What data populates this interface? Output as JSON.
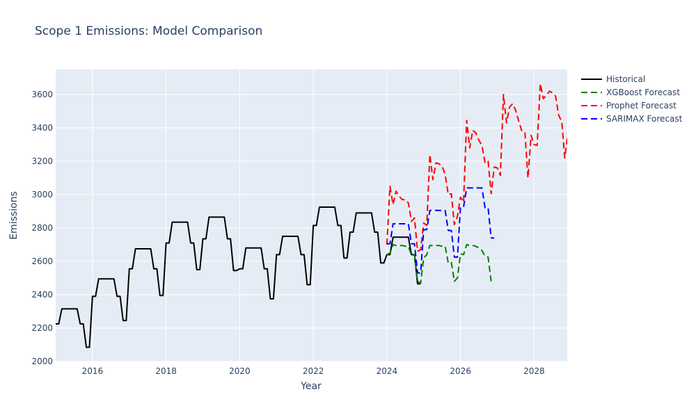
{
  "chart_data": {
    "type": "line",
    "title": "Scope 1 Emissions: Model Comparison",
    "xlabel": "Year",
    "ylabel": "Emissions",
    "xlim": [
      2015.0,
      2028.9
    ],
    "ylim": [
      2000,
      3750
    ],
    "x_ticks": [
      2016,
      2018,
      2020,
      2022,
      2024,
      2026,
      2028
    ],
    "x_tick_labels": [
      "2016",
      "2018",
      "2020",
      "2022",
      "2024",
      "2026",
      "2028"
    ],
    "y_ticks": [
      2000,
      2200,
      2400,
      2600,
      2800,
      3000,
      3200,
      3400,
      3600
    ],
    "y_tick_labels": [
      "2000",
      "2200",
      "2400",
      "2600",
      "2800",
      "3000",
      "3200",
      "3400",
      "3600"
    ],
    "grid": true,
    "legend_position": "top-right outside",
    "plot_background": "#e5ecf6",
    "series": [
      {
        "name": "Historical",
        "color": "#000000",
        "dash": "solid",
        "x": [
          2015.0,
          2015.083,
          2015.167,
          2015.25,
          2015.333,
          2015.417,
          2015.5,
          2015.583,
          2015.667,
          2015.75,
          2015.833,
          2015.917,
          2016.0,
          2016.083,
          2016.167,
          2016.25,
          2016.333,
          2016.417,
          2016.5,
          2016.583,
          2016.667,
          2016.75,
          2016.833,
          2016.917,
          2017.0,
          2017.083,
          2017.167,
          2017.25,
          2017.333,
          2017.417,
          2017.5,
          2017.583,
          2017.667,
          2017.75,
          2017.833,
          2017.917,
          2018.0,
          2018.083,
          2018.167,
          2018.25,
          2018.333,
          2018.417,
          2018.5,
          2018.583,
          2018.667,
          2018.75,
          2018.833,
          2018.917,
          2019.0,
          2019.083,
          2019.167,
          2019.25,
          2019.333,
          2019.417,
          2019.5,
          2019.583,
          2019.667,
          2019.75,
          2019.833,
          2019.917,
          2020.0,
          2020.083,
          2020.167,
          2020.25,
          2020.333,
          2020.417,
          2020.5,
          2020.583,
          2020.667,
          2020.75,
          2020.833,
          2020.917,
          2021.0,
          2021.083,
          2021.167,
          2021.25,
          2021.333,
          2021.417,
          2021.5,
          2021.583,
          2021.667,
          2021.75,
          2021.833,
          2021.917,
          2022.0,
          2022.083,
          2022.167,
          2022.25,
          2022.333,
          2022.417,
          2022.5,
          2022.583,
          2022.667,
          2022.75,
          2022.833,
          2022.917,
          2023.0,
          2023.083,
          2023.167,
          2023.25,
          2023.333,
          2023.417,
          2023.5,
          2023.583,
          2023.667,
          2023.75,
          2023.833,
          2023.917,
          2024.0,
          2024.083,
          2024.167,
          2024.25,
          2024.333,
          2024.417,
          2024.5,
          2024.583,
          2024.667,
          2024.75,
          2024.833,
          2024.917
        ],
        "y": [
          2225,
          2225,
          2315,
          2315,
          2315,
          2315,
          2315,
          2315,
          2225,
          2225,
          2085,
          2085,
          2390,
          2390,
          2495,
          2495,
          2495,
          2495,
          2495,
          2495,
          2390,
          2390,
          2245,
          2245,
          2555,
          2555,
          2675,
          2675,
          2675,
          2675,
          2675,
          2675,
          2555,
          2555,
          2395,
          2395,
          2710,
          2710,
          2835,
          2835,
          2835,
          2835,
          2835,
          2835,
          2710,
          2710,
          2550,
          2550,
          2735,
          2735,
          2865,
          2865,
          2865,
          2865,
          2865,
          2865,
          2735,
          2735,
          2545,
          2545,
          2555,
          2555,
          2680,
          2680,
          2680,
          2680,
          2680,
          2680,
          2555,
          2555,
          2375,
          2375,
          2640,
          2640,
          2750,
          2750,
          2750,
          2750,
          2750,
          2750,
          2640,
          2640,
          2460,
          2460,
          2815,
          2815,
          2925,
          2925,
          2925,
          2925,
          2925,
          2925,
          2815,
          2815,
          2620,
          2620,
          2775,
          2775,
          2890,
          2890,
          2890,
          2890,
          2890,
          2890,
          2775,
          2775,
          2590,
          2590,
          2640,
          2640,
          2745,
          2745,
          2745,
          2745,
          2745,
          2745,
          2640,
          2640,
          2465,
          2465
        ]
      },
      {
        "name": "XGBoost Forecast",
        "color": "#008000",
        "dash": "dash",
        "x": [
          2024.0,
          2024.083,
          2024.167,
          2024.25,
          2024.333,
          2024.417,
          2024.5,
          2024.583,
          2024.667,
          2024.75,
          2024.833,
          2024.917,
          2025.0,
          2025.083,
          2025.167,
          2025.25,
          2025.333,
          2025.417,
          2025.5,
          2025.583,
          2025.667,
          2025.75,
          2025.833,
          2025.917,
          2026.0,
          2026.083,
          2026.167,
          2026.25,
          2026.333,
          2026.417,
          2026.5,
          2026.583,
          2026.667,
          2026.75,
          2026.833,
          2026.917,
          2027.0
        ],
        "y": [
          2640,
          2650,
          2700,
          2695,
          2695,
          2695,
          2690,
          2690,
          2635,
          2640,
          2480,
          2470,
          2620,
          2640,
          2695,
          2695,
          2695,
          2695,
          2690,
          2690,
          2590,
          2595,
          2480,
          2500,
          2645,
          2640,
          2700,
          2695,
          2695,
          2690,
          2680,
          2665,
          2630,
          2625,
          2480,
          null,
          2515
        ]
      },
      {
        "name": "Prophet Forecast",
        "color": "#ff0000",
        "dash": "dash",
        "x": [
          2024.0,
          2024.083,
          2024.167,
          2024.25,
          2024.333,
          2024.417,
          2024.5,
          2024.583,
          2024.667,
          2024.75,
          2024.833,
          2024.917,
          2025.0,
          2025.083,
          2025.167,
          2025.25,
          2025.333,
          2025.417,
          2025.5,
          2025.583,
          2025.667,
          2025.75,
          2025.833,
          2025.917,
          2026.0,
          2026.083,
          2026.167,
          2026.25,
          2026.333,
          2026.417,
          2026.5,
          2026.583,
          2026.667,
          2026.75,
          2026.833,
          2026.917,
          2027.0,
          2027.083,
          2027.167,
          2027.25,
          2027.333,
          2027.417,
          2027.5,
          2027.583,
          2027.667,
          2027.75,
          2027.833,
          2027.917,
          2028.0,
          2028.083,
          2028.167,
          2028.25,
          2028.333,
          2028.417,
          2028.5,
          2028.583,
          2028.667,
          2028.75,
          2028.833,
          2028.917
        ],
        "y": [
          2700,
          3050,
          2940,
          3020,
          2990,
          2970,
          2970,
          2950,
          2840,
          2860,
          2660,
          2670,
          2830,
          2815,
          3240,
          3090,
          3190,
          3185,
          3170,
          3120,
          3000,
          3005,
          2820,
          2870,
          2985,
          2955,
          3445,
          3280,
          3385,
          3370,
          3325,
          3295,
          3190,
          3200,
          3005,
          3165,
          3160,
          3115,
          3600,
          3430,
          3525,
          3545,
          3505,
          3440,
          3380,
          3375,
          3100,
          3355,
          3300,
          3295,
          3665,
          3575,
          3595,
          3620,
          3610,
          3590,
          3475,
          3440,
          3220,
          3365
        ]
      },
      {
        "name": "SARIMAX Forecast",
        "color": "#0000ff",
        "dash": "dash",
        "x": [
          2024.0,
          2024.083,
          2024.167,
          2024.25,
          2024.333,
          2024.417,
          2024.5,
          2024.583,
          2024.667,
          2024.75,
          2024.833,
          2024.917,
          2025.0,
          2025.083,
          2025.167,
          2025.25,
          2025.333,
          2025.417,
          2025.5,
          2025.583,
          2025.667,
          2025.75,
          2025.833,
          2025.917,
          2026.0,
          2026.083,
          2026.167,
          2026.25,
          2026.333,
          2026.417,
          2026.5,
          2026.583,
          2026.667,
          2026.75,
          2026.833,
          2026.917
        ],
        "y": [
          2705,
          2705,
          2825,
          2825,
          2825,
          2825,
          2825,
          2825,
          2705,
          2705,
          2530,
          2530,
          2790,
          2790,
          2905,
          2905,
          2905,
          2905,
          2905,
          2905,
          2785,
          2785,
          2625,
          2625,
          2925,
          2925,
          3040,
          3040,
          3040,
          3040,
          3040,
          3040,
          2920,
          2920,
          2740,
          2740
        ]
      }
    ]
  }
}
